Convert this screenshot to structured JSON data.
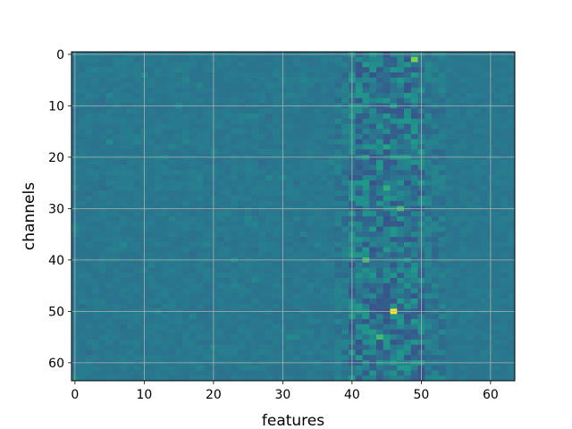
{
  "chart_data": {
    "type": "heatmap",
    "title": "",
    "xlabel": "features",
    "ylabel": "channels",
    "n_cols": 64,
    "n_rows": 64,
    "xlim": [
      -0.5,
      63.5
    ],
    "ylim": [
      63.5,
      -0.5
    ],
    "x_ticks": [
      0,
      10,
      20,
      30,
      40,
      50,
      60
    ],
    "y_ticks": [
      0,
      10,
      20,
      30,
      40,
      50,
      60
    ],
    "grid": true,
    "colormap": "viridis",
    "value_range": [
      -1,
      1
    ],
    "description": "mostly uniform mid-low values (dark blue) with high-variance band around features 40-50",
    "background_value": 0.0,
    "highlights": [
      {
        "x": 46,
        "y": 50,
        "value": 1.0
      },
      {
        "x": 49,
        "y": 1,
        "value": 0.75
      },
      {
        "x": 42,
        "y": 40,
        "value": 0.6
      },
      {
        "x": 45,
        "y": 26,
        "value": 0.55
      },
      {
        "x": 47,
        "y": 30,
        "value": 0.6
      },
      {
        "x": 44,
        "y": 55,
        "value": 0.6
      },
      {
        "x": 45,
        "y": 18,
        "value": 0.5
      }
    ],
    "colors": {
      "grid": "#b0b0b0",
      "axis": "#000000"
    }
  }
}
